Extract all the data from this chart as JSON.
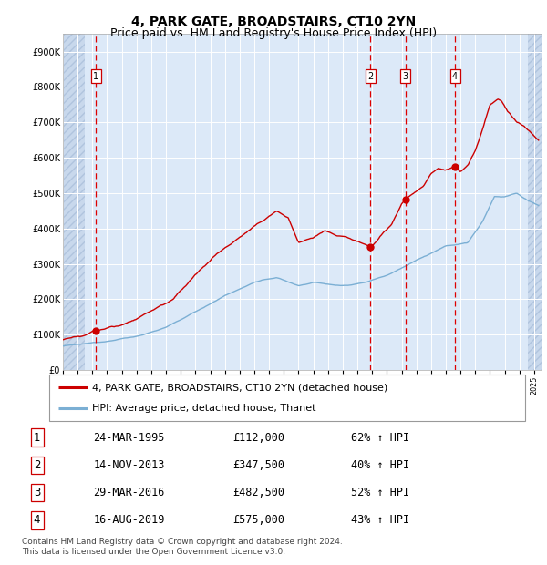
{
  "title": "4, PARK GATE, BROADSTAIRS, CT10 2YN",
  "subtitle": "Price paid vs. HM Land Registry's House Price Index (HPI)",
  "ylabel_ticks": [
    "£0",
    "£100K",
    "£200K",
    "£300K",
    "£400K",
    "£500K",
    "£600K",
    "£700K",
    "£800K",
    "£900K"
  ],
  "ytick_values": [
    0,
    100000,
    200000,
    300000,
    400000,
    500000,
    600000,
    700000,
    800000,
    900000
  ],
  "ylim": [
    0,
    950000
  ],
  "xlim_start": 1993.0,
  "xlim_end": 2025.5,
  "hatch_left_end": 1994.5,
  "hatch_right_start": 2024.6,
  "sale_dates": [
    1995.23,
    2013.87,
    2016.25,
    2019.62
  ],
  "sale_prices": [
    112000,
    347500,
    482500,
    575000
  ],
  "sale_labels": [
    "1",
    "2",
    "3",
    "4"
  ],
  "legend_property": "4, PARK GATE, BROADSTAIRS, CT10 2YN (detached house)",
  "legend_hpi": "HPI: Average price, detached house, Thanet",
  "table_data": [
    [
      "1",
      "24-MAR-1995",
      "£112,000",
      "62% ↑ HPI"
    ],
    [
      "2",
      "14-NOV-2013",
      "£347,500",
      "40% ↑ HPI"
    ],
    [
      "3",
      "29-MAR-2016",
      "£482,500",
      "52% ↑ HPI"
    ],
    [
      "4",
      "16-AUG-2019",
      "£575,000",
      "43% ↑ HPI"
    ]
  ],
  "footer": "Contains HM Land Registry data © Crown copyright and database right 2024.\nThis data is licensed under the Open Government Licence v3.0.",
  "bg_color": "#dce9f8",
  "hatch_color": "#c8d8ec",
  "grid_color": "#ffffff",
  "red_line_color": "#cc0000",
  "blue_line_color": "#7bafd4",
  "sale_marker_color": "#cc0000",
  "dashed_line_color": "#dd0000",
  "title_fontsize": 10,
  "subtitle_fontsize": 9,
  "tick_fontsize": 7,
  "legend_fontsize": 8,
  "table_fontsize": 8.5,
  "footer_fontsize": 6.5
}
